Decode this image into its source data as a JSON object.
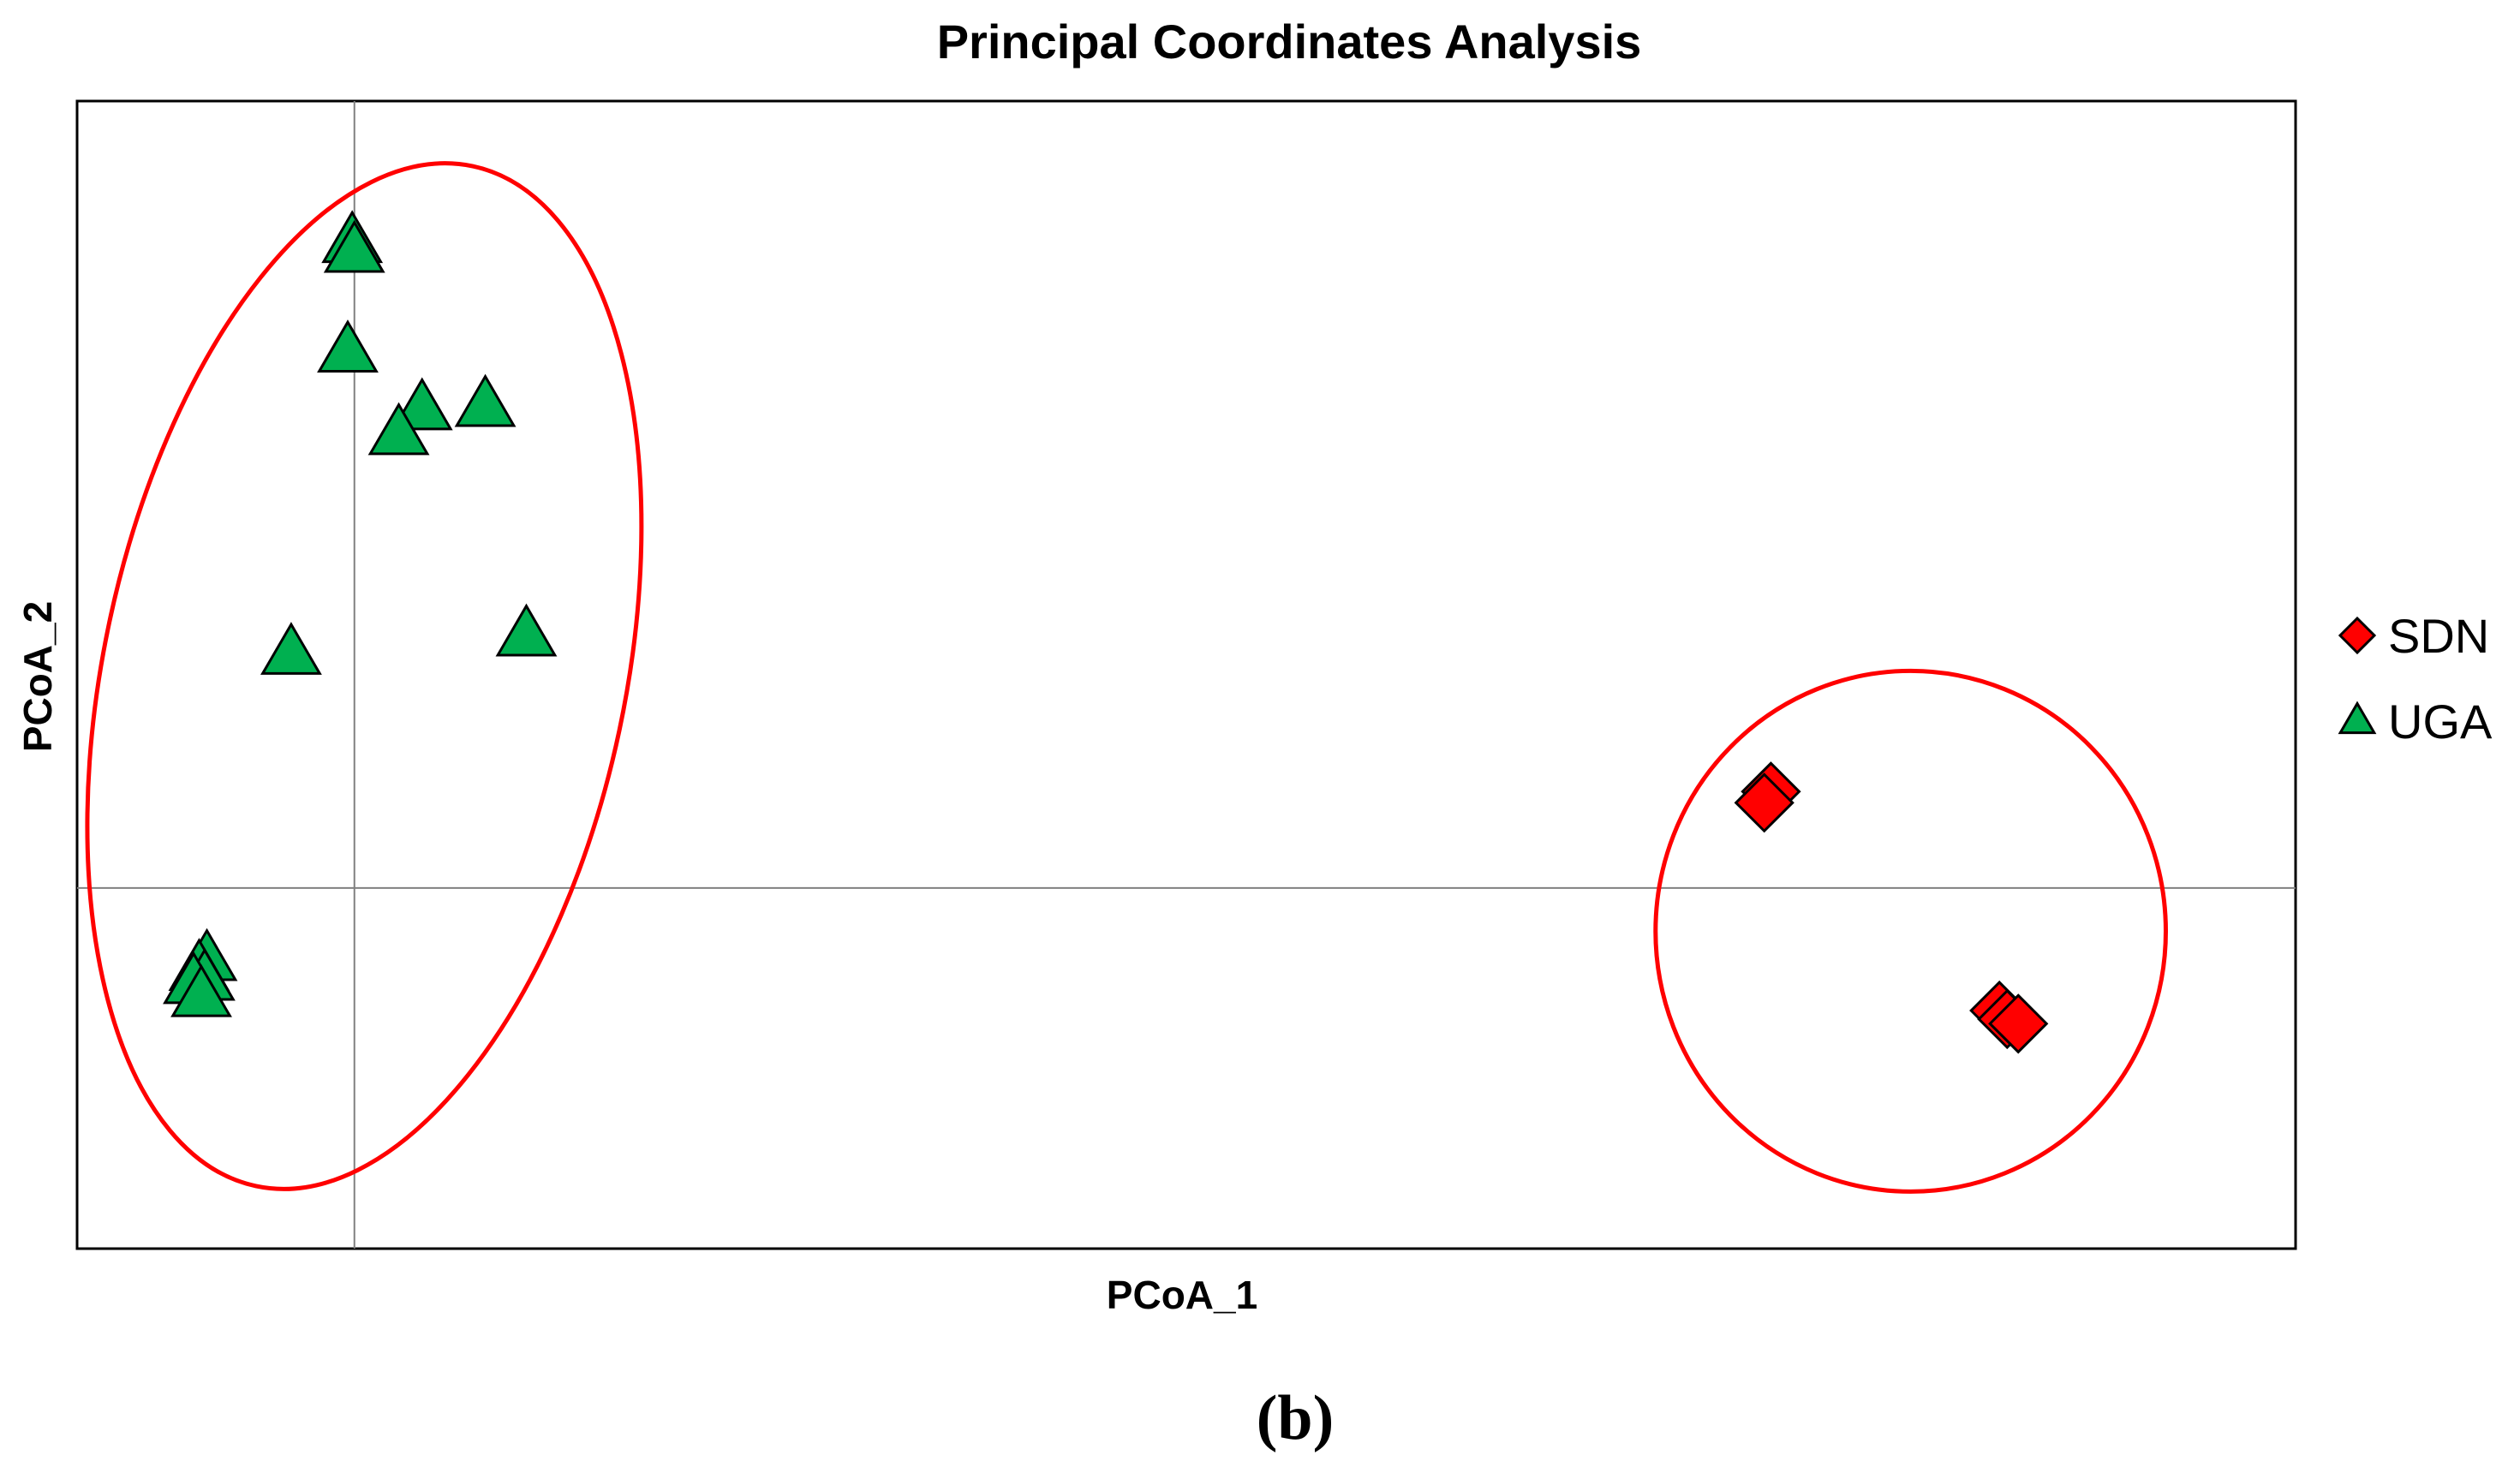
{
  "chart_data": {
    "type": "scatter",
    "title": "Principal Coordinates Analysis",
    "xlabel": "PCoA_1",
    "ylabel": "PCoA_2",
    "caption": "(b)",
    "xlim": [
      -0.25,
      1.75
    ],
    "ylim": [
      -0.55,
      1.2
    ],
    "origin_lines": true,
    "grid": false,
    "legend": {
      "position": "right"
    },
    "series": [
      {
        "name": "SDN",
        "marker": "diamond",
        "color": "#ff0000",
        "points": [
          {
            "x": 1.277,
            "y": 0.147
          },
          {
            "x": 1.271,
            "y": 0.13
          },
          {
            "x": 1.483,
            "y": -0.187
          },
          {
            "x": 1.49,
            "y": -0.2
          },
          {
            "x": 1.5,
            "y": -0.207
          }
        ]
      },
      {
        "name": "UGA",
        "marker": "triangle",
        "color": "#00b050",
        "points": [
          {
            "x": -0.002,
            "y": 0.985
          },
          {
            "x": 0.0,
            "y": 0.97
          },
          {
            "x": -0.006,
            "y": 0.818
          },
          {
            "x": 0.061,
            "y": 0.73
          },
          {
            "x": 0.04,
            "y": 0.692
          },
          {
            "x": 0.118,
            "y": 0.735
          },
          {
            "x": -0.057,
            "y": 0.357
          },
          {
            "x": 0.155,
            "y": 0.385
          },
          {
            "x": -0.133,
            "y": -0.11
          },
          {
            "x": -0.14,
            "y": -0.125
          },
          {
            "x": -0.135,
            "y": -0.14
          },
          {
            "x": -0.145,
            "y": -0.145
          },
          {
            "x": -0.138,
            "y": -0.165
          }
        ]
      }
    ],
    "ellipses": [
      {
        "name": "UGA-cluster",
        "cx": 0.009,
        "cy": 0.323,
        "rx": 0.235,
        "ry": 0.795,
        "rotation_deg": 12,
        "color": "#ff0000"
      },
      {
        "name": "SDN-cluster",
        "cx": 1.403,
        "cy": -0.066,
        "rx": 0.23,
        "ry": 0.397,
        "rotation_deg": 0,
        "color": "#ff0000"
      }
    ]
  }
}
